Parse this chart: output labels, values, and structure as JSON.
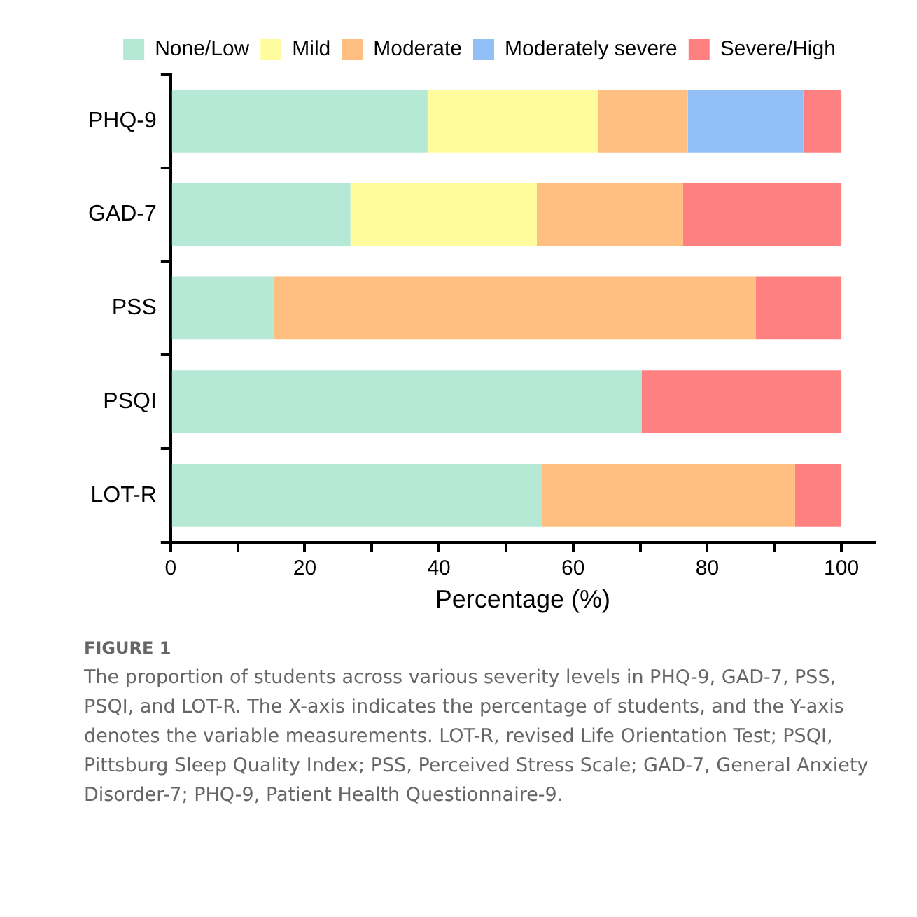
{
  "chart_data": {
    "type": "bar",
    "orientation": "horizontal",
    "stacked": true,
    "categories": [
      "PHQ-9",
      "GAD-7",
      "PSS",
      "PSQI",
      "LOT-R"
    ],
    "xlabel": "Percentage (%)",
    "xlim": [
      0,
      105
    ],
    "xticks": [
      0,
      {
        "value": 10,
        "label": null
      },
      20,
      {
        "value": 30,
        "label": null
      },
      40,
      {
        "value": 50,
        "label": null
      },
      60,
      {
        "value": 70,
        "label": null
      },
      80,
      {
        "value": 90,
        "label": null
      },
      100
    ],
    "series": [
      {
        "name": "None/Low",
        "color": "#b5e8d5",
        "values": [
          38.3,
          26.8,
          15.3,
          70.2,
          55.4
        ]
      },
      {
        "name": "Mild",
        "color": "#fffc9e",
        "values": [
          25.4,
          27.8,
          null,
          null,
          null
        ]
      },
      {
        "name": "Moderate",
        "color": "#ffbf80",
        "values": [
          13.4,
          21.8,
          71.9,
          null,
          37.7
        ]
      },
      {
        "name": "Moderately severe",
        "color": "#93bff7",
        "values": [
          17.2,
          null,
          null,
          null,
          null
        ]
      },
      {
        "name": "Severe/High",
        "color": "#ff8080",
        "values": [
          5.7,
          23.6,
          12.8,
          29.8,
          6.9
        ]
      }
    ],
    "legend": "top",
    "grid": false,
    "annotations": [
      "FIGURE 1",
      "The proportion of students across various severity levels in PHQ-9, GAD-7, PSS, PSQI, and LOT-R. The X-axis indicates the percentage of students, and the Y-axis denotes the variable measurements. LOT-R, revised Life Orientation Test; PSQI, Pittsburg Sleep Quality Index; PSS, Perceived Stress Scale; GAD-7, General Anxiety Disorder-7; PHQ-9, Patient Health Questionnaire-9."
    ]
  }
}
